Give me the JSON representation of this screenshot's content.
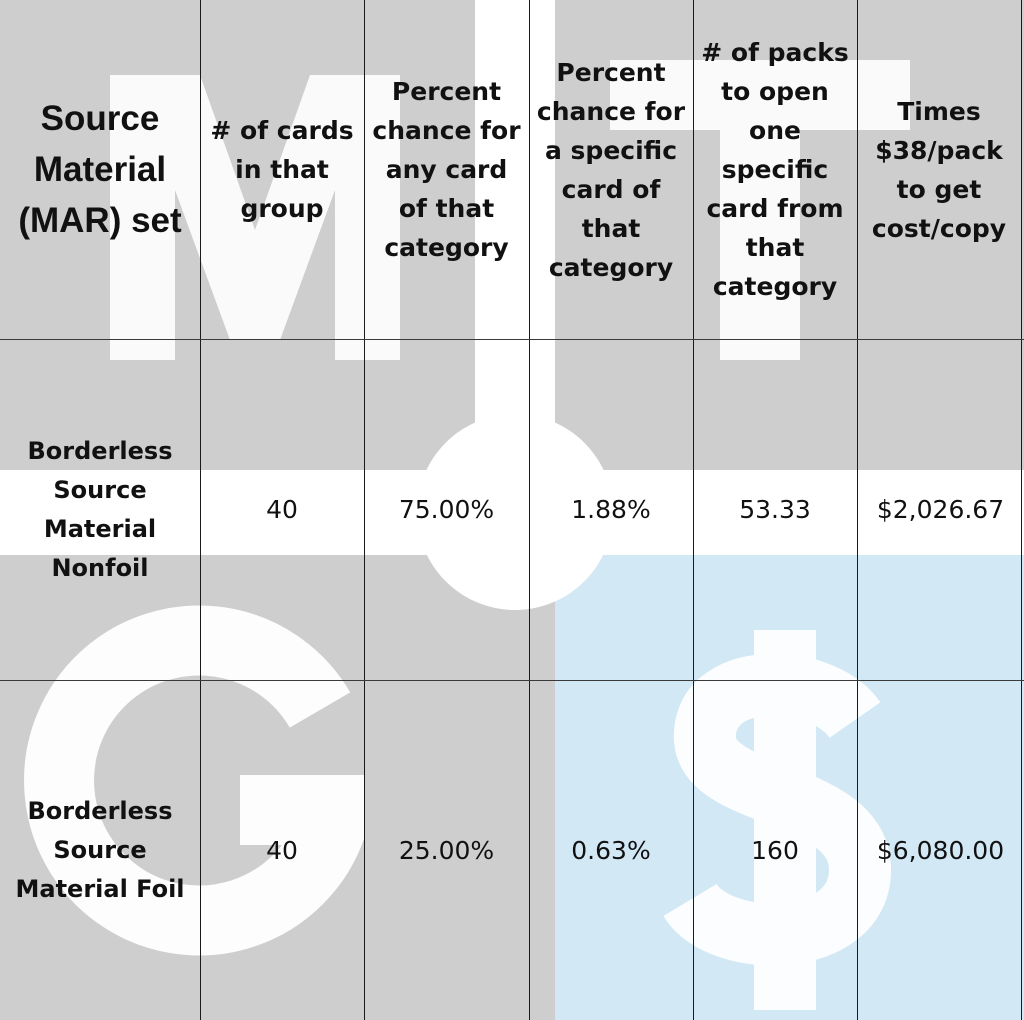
{
  "chart_data": {
    "type": "table",
    "columns": [
      "Source\nMaterial\n(MAR) set",
      "# of cards\nin that\ngroup",
      "Percent\nchance for\nany card\nof that\ncategory",
      "Percent\nchance for\na specific\ncard of\nthat\ncategory",
      "# of packs\nto open\none\nspecific\ncard from\nthat\ncategory",
      "Times\n$38/pack\nto get\ncost/copy"
    ],
    "rows": [
      {
        "label": "Borderless\nSource\nMaterial\nNonfoil",
        "cards": "40",
        "pct_any": "75.00%",
        "pct_specific": "1.88%",
        "packs": "53.33",
        "cost": "$2,026.67"
      },
      {
        "label": "Borderless\nSource\nMaterial Foil",
        "cards": "40",
        "pct_any": "25.00%",
        "pct_specific": "0.63%",
        "packs": "160",
        "cost": "$6,080.00"
      }
    ]
  },
  "watermark": {
    "letters": [
      "M",
      "T",
      "G",
      "$"
    ],
    "colors": {
      "background": "#cecece",
      "letter": "#ffffff",
      "highlight": "#d2e9f5"
    }
  }
}
